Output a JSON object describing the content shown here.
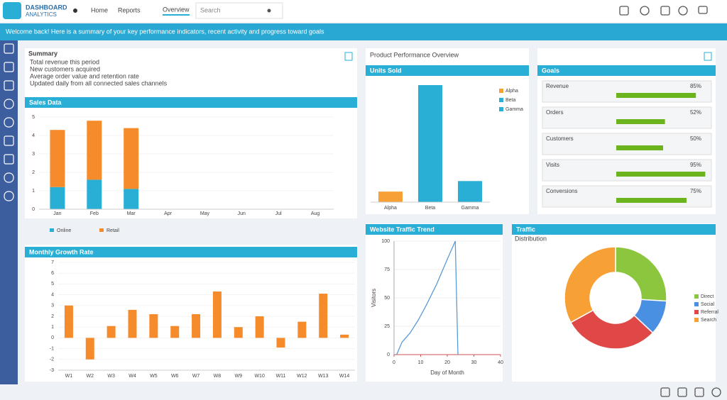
{
  "header": {
    "logo": "DASHBOARD",
    "logo_sub": "ANALYTICS",
    "nav": [
      "Home",
      "Reports"
    ],
    "tab": "Overview",
    "search": "Search"
  },
  "banner": "Welcome back! Here is a summary of your key performance indicators, recent activity and progress toward goals",
  "summary": {
    "title": "Summary",
    "lines": [
      "Total revenue this period",
      "New customers acquired",
      "Average order value and retention rate",
      "Updated daily from all connected sales channels"
    ]
  },
  "chart_data": [
    {
      "type": "stacked_bar",
      "title": "Sales Data",
      "categories": [
        "Jan",
        "Feb",
        "Mar",
        "Apr",
        "May",
        "Jun",
        "Jul",
        "Aug"
      ],
      "series": [
        {
          "name": "Online",
          "color": "#29aed6",
          "values": [
            1.2,
            1.6,
            1.1,
            null,
            null,
            null,
            null,
            null
          ]
        },
        {
          "name": "Retail",
          "color": "#f68b2c",
          "values": [
            3.1,
            3.2,
            3.3,
            null,
            null,
            null,
            null,
            null
          ]
        }
      ],
      "ylim": [
        0,
        5
      ],
      "yticks": [
        0,
        1,
        2,
        3,
        4,
        5
      ],
      "legend": "bottom"
    },
    {
      "type": "bar",
      "title": "Monthly Growth Rate",
      "categories": [
        "W1",
        "W2",
        "W3",
        "W4",
        "W5",
        "W6",
        "W7",
        "W8",
        "W9",
        "W10",
        "W11",
        "W12",
        "W13",
        "W14"
      ],
      "values": [
        3.0,
        -2.0,
        1.1,
        2.6,
        2.2,
        1.1,
        2.2,
        4.3,
        1.0,
        2.0,
        -0.9,
        1.5,
        4.1,
        0.3
      ],
      "color": "#f68b2c",
      "ylim": [
        -3,
        7
      ],
      "yticks": [
        -3,
        -2,
        -1,
        0,
        1,
        2,
        3,
        4,
        5,
        6,
        7
      ]
    },
    {
      "type": "bar",
      "title": "Units Sold",
      "heading": "Product Performance Overview",
      "categories": [
        "Alpha",
        "Beta",
        "Gamma"
      ],
      "values": [
        0.9,
        10,
        1.8
      ],
      "colors": [
        "#f7a035",
        "#29aed6",
        "#29aed6"
      ],
      "ylim": [
        0,
        10
      ],
      "legend": "right"
    },
    {
      "type": "progress",
      "title": "Goals",
      "categories": [
        "Revenue",
        "Orders",
        "Customers",
        "Visits",
        "Conversions"
      ],
      "values": [
        85,
        52,
        50,
        95,
        75
      ],
      "value_labels": [
        "85%",
        "52%",
        "50%",
        "95%",
        "75%"
      ],
      "color": "#6cb41e"
    },
    {
      "type": "line",
      "title": "Website Traffic Trend",
      "xlabel": "Day of Month",
      "ylabel": "Visitors",
      "x": [
        1,
        3,
        6,
        9,
        12,
        16,
        20,
        23,
        24
      ],
      "values": [
        0,
        11,
        19,
        30,
        43,
        62,
        84,
        100,
        0
      ],
      "color": "#5b9bd5",
      "xlim": [
        0,
        40
      ],
      "xticks": [
        0,
        10,
        20,
        30,
        40
      ],
      "ylim": [
        0,
        100
      ],
      "yticks": [
        0,
        25,
        50,
        75,
        100
      ]
    },
    {
      "type": "donut",
      "title": "Traffic",
      "subtitle": "Distribution",
      "categories": [
        "Direct",
        "Social",
        "Referral",
        "Search"
      ],
      "values": [
        26,
        11,
        30,
        33
      ],
      "colors": [
        "#8cc63f",
        "#4a90e2",
        "#e04848",
        "#f7a035"
      ],
      "legend": "right"
    }
  ]
}
